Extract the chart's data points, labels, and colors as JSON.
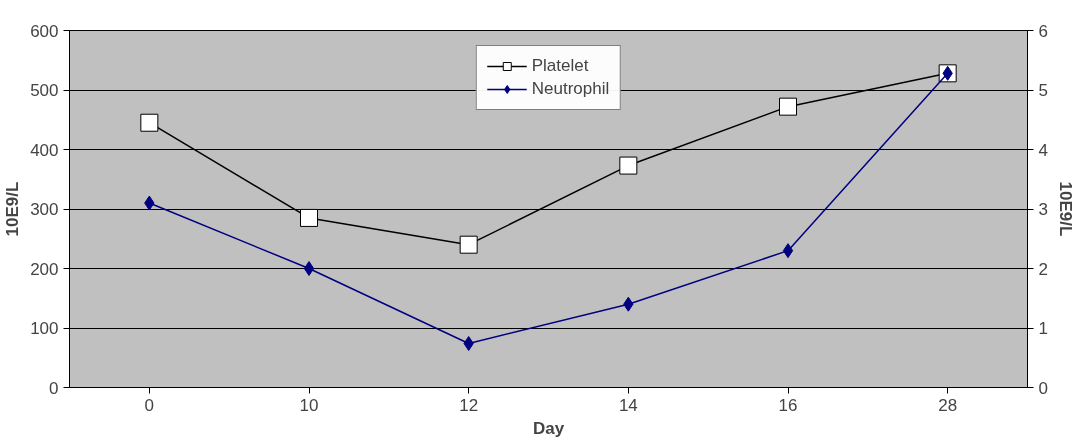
{
  "chart_data": {
    "type": "line",
    "xlabel": "Day",
    "ylabel": "10E9/L",
    "y2label": "10E9/L",
    "categories": [
      "0",
      "10",
      "12",
      "14",
      "16",
      "28"
    ],
    "series": [
      {
        "name": "Platelet",
        "color": "#000000",
        "marker": "square",
        "values": [
          445,
          285,
          240,
          373,
          472,
          528
        ]
      },
      {
        "name": "Neutrophil",
        "color": "#000080",
        "marker": "diamond",
        "axis": "y2",
        "values": [
          3.1,
          2.0,
          0.74,
          1.4,
          2.3,
          5.28
        ]
      }
    ],
    "ylim": [
      0,
      600
    ],
    "yticks": [
      0,
      100,
      200,
      300,
      400,
      500,
      600
    ],
    "y2lim": [
      0,
      6
    ],
    "y2ticks": [
      0,
      1,
      2,
      3,
      4,
      5,
      6
    ],
    "grid": "y",
    "legend": "top"
  }
}
